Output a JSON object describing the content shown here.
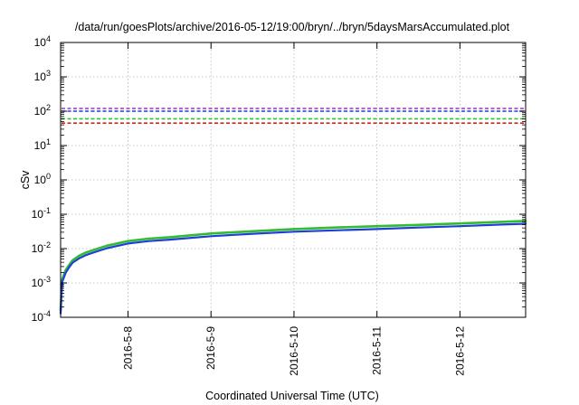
{
  "chart_data": {
    "type": "line",
    "title": "/data/run/goesPlots/archive/2016-05-12/19:00/bryn/../bryn/5daysMarsAccumulated.plot",
    "xlabel": "Coordinated Universal Time (UTC)",
    "ylabel": "cSv",
    "yscale": "log",
    "ylim": [
      0.0001,
      10000
    ],
    "xlim": [
      "2016-05-07 04:30",
      "2016-05-12 19:00"
    ],
    "grid": true,
    "y_ticks": [
      {
        "value": 0.0001,
        "base": "10",
        "exp": "-4"
      },
      {
        "value": 0.001,
        "base": "10",
        "exp": "-3"
      },
      {
        "value": 0.01,
        "base": "10",
        "exp": "-2"
      },
      {
        "value": 0.1,
        "base": "10",
        "exp": "-1"
      },
      {
        "value": 1,
        "base": "10",
        "exp": "0"
      },
      {
        "value": 10,
        "base": "10",
        "exp": "1"
      },
      {
        "value": 100,
        "base": "10",
        "exp": "2"
      },
      {
        "value": 1000,
        "base": "10",
        "exp": "3"
      },
      {
        "value": 10000,
        "base": "10",
        "exp": "4"
      }
    ],
    "x_ticks": [
      {
        "value": "2016-05-08 00:00",
        "label": "2016-5-8"
      },
      {
        "value": "2016-05-09 00:00",
        "label": "2016-5-9"
      },
      {
        "value": "2016-05-10 00:00",
        "label": "2016-5-10"
      },
      {
        "value": "2016-05-11 00:00",
        "label": "2016-5-11"
      },
      {
        "value": "2016-05-12 00:00",
        "label": "2016-5-12"
      }
    ],
    "thresholds": [
      {
        "value": 120,
        "color": "#9b30d9"
      },
      {
        "value": 100,
        "color": "#1f3fd6"
      },
      {
        "value": 60,
        "color": "#22cc22"
      },
      {
        "value": 45,
        "color": "#e02020"
      }
    ],
    "series": [
      {
        "color": "#33bb33",
        "width": 2.6,
        "x": [
          "2016-05-07 04:30",
          "2016-05-07 04:45",
          "2016-05-07 05:00",
          "2016-05-07 06:00",
          "2016-05-07 07:00",
          "2016-05-07 08:00",
          "2016-05-07 10:00",
          "2016-05-07 12:00",
          "2016-05-07 15:00",
          "2016-05-07 18:00",
          "2016-05-08 00:00",
          "2016-05-08 06:00",
          "2016-05-08 12:00",
          "2016-05-09 00:00",
          "2016-05-09 12:00",
          "2016-05-10 00:00",
          "2016-05-10 12:00",
          "2016-05-11 00:00",
          "2016-05-11 12:00",
          "2016-05-12 00:00",
          "2016-05-12 12:00",
          "2016-05-12 19:00"
        ],
        "y": [
          0.00016,
          0.0006,
          0.0013,
          0.0024,
          0.0034,
          0.0046,
          0.0063,
          0.0078,
          0.0098,
          0.0122,
          0.0165,
          0.0195,
          0.0215,
          0.0275,
          0.032,
          0.037,
          0.041,
          0.045,
          0.049,
          0.054,
          0.06,
          0.064
        ]
      },
      {
        "color": "#1f3fd6",
        "width": 2.2,
        "x": [
          "2016-05-07 04:30",
          "2016-05-07 04:45",
          "2016-05-07 05:00",
          "2016-05-07 06:00",
          "2016-05-07 07:00",
          "2016-05-07 08:00",
          "2016-05-07 10:00",
          "2016-05-07 12:00",
          "2016-05-07 15:00",
          "2016-05-07 18:00",
          "2016-05-08 00:00",
          "2016-05-08 06:00",
          "2016-05-08 12:00",
          "2016-05-09 00:00",
          "2016-05-09 12:00",
          "2016-05-10 00:00",
          "2016-05-10 12:00",
          "2016-05-11 00:00",
          "2016-05-11 12:00",
          "2016-05-12 00:00",
          "2016-05-12 12:00",
          "2016-05-12 19:00"
        ],
        "y": [
          0.00013,
          0.0005,
          0.0011,
          0.002,
          0.0029,
          0.0039,
          0.0053,
          0.0066,
          0.0083,
          0.0103,
          0.014,
          0.0165,
          0.0182,
          0.023,
          0.027,
          0.031,
          0.034,
          0.037,
          0.041,
          0.045,
          0.05,
          0.053
        ]
      }
    ]
  }
}
